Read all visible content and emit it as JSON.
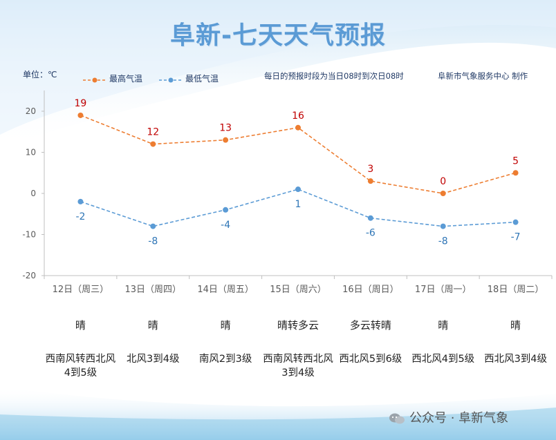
{
  "title": "阜新-七天天气预报",
  "unit_label": "单位：℃",
  "note_left": "每日的预报时段为当日08时到次日08时",
  "note_right": "阜新市气象服务中心 制作",
  "watermark": "公众号 · 阜新气象",
  "colors": {
    "high": "#ed7d31",
    "low": "#5b9bd5",
    "title": "#5b9bd5",
    "high_label": "#c00000",
    "low_label": "#2e75b6"
  },
  "chart_data": {
    "type": "line",
    "categories": [
      "12日（周三）",
      "13日（周四）",
      "14日（周五）",
      "15日（周六）",
      "16日（周日）",
      "17日（周一）",
      "18日（周二）"
    ],
    "series": [
      {
        "name": "最高气温",
        "values": [
          19,
          12,
          13,
          16,
          3,
          0,
          5
        ]
      },
      {
        "name": "最低气温",
        "values": [
          -2,
          -8,
          -4,
          1,
          -6,
          -8,
          -7
        ]
      }
    ],
    "ylim": [
      -20,
      20
    ],
    "yticks": [
      "20",
      "10",
      "0",
      "-10",
      "-20"
    ],
    "legend": "top-left",
    "grid": false
  },
  "days": [
    {
      "weather": "晴",
      "wind": "西南风转西北风4到5级"
    },
    {
      "weather": "晴",
      "wind": "北风3到4级"
    },
    {
      "weather": "晴",
      "wind": "南风2到3级"
    },
    {
      "weather": "晴转多云",
      "wind": "西南风转西北风3到4级"
    },
    {
      "weather": "多云转晴",
      "wind": "西北风5到6级"
    },
    {
      "weather": "晴",
      "wind": "西北风4到5级"
    },
    {
      "weather": "晴",
      "wind": "西北风3到4级"
    }
  ]
}
